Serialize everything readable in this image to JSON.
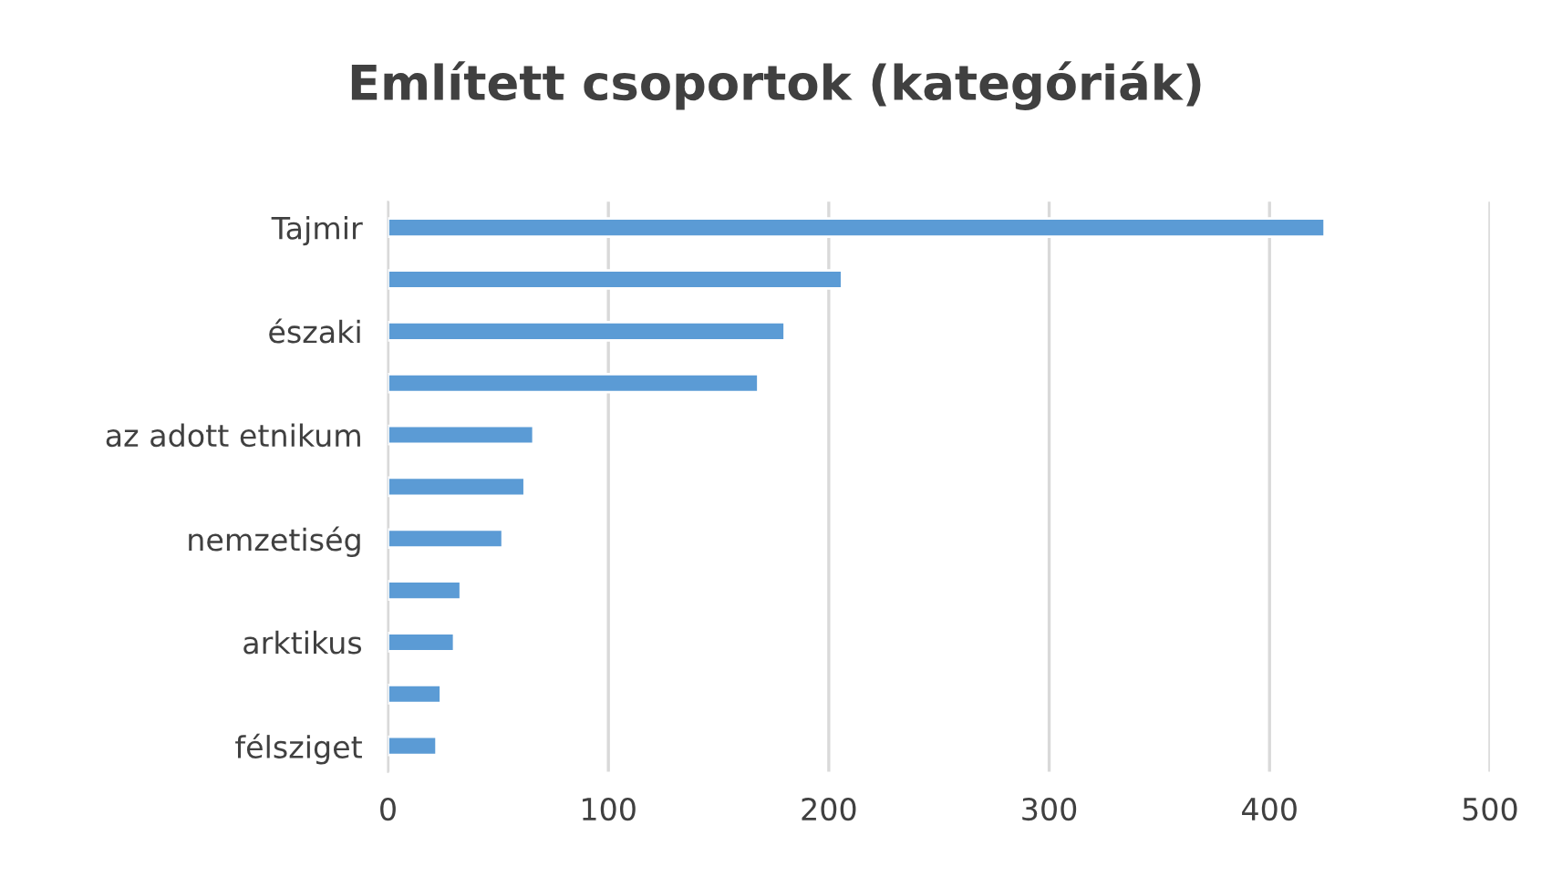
{
  "chart_data": {
    "type": "bar",
    "orientation": "horizontal",
    "title": "Említett csoportok (kategóriák)",
    "categories": [
      "Tajmir",
      null,
      "északi",
      null,
      "az adott etnikum",
      null,
      "nemzetiség",
      null,
      "arktikus",
      null,
      "félsziget"
    ],
    "values": [
      425,
      206,
      180,
      168,
      66,
      62,
      52,
      33,
      30,
      24,
      22
    ],
    "color": "#5b9bd5",
    "xlim": [
      0,
      500
    ],
    "xticks": [
      0,
      100,
      200,
      300,
      400,
      500
    ],
    "grid": "x",
    "legend": false
  }
}
